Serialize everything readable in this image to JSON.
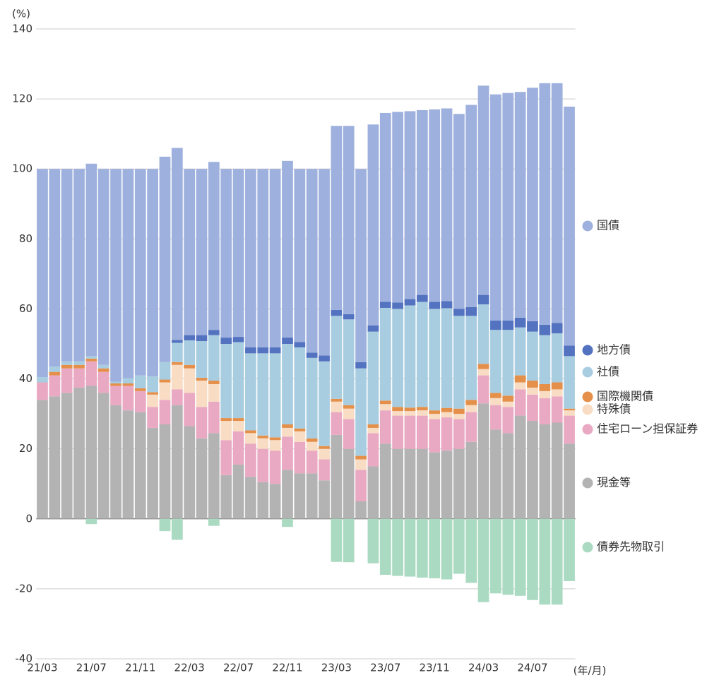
{
  "chart_data": {
    "type": "stacked-bar",
    "y_unit_label": "(%)",
    "x_unit_label": "(年/月)",
    "categories": [
      "21/03",
      null,
      null,
      null,
      "21/07",
      null,
      null,
      null,
      "21/11",
      null,
      null,
      null,
      "22/03",
      null,
      null,
      null,
      "22/07",
      null,
      null,
      null,
      "22/11",
      null,
      null,
      null,
      "23/03",
      null,
      null,
      null,
      "23/07",
      null,
      null,
      null,
      "23/11",
      null,
      null,
      null,
      "24/03",
      null,
      null,
      null,
      "24/07",
      null,
      null,
      null
    ],
    "ylim": [
      -40,
      140
    ],
    "yticks": [
      -40,
      -20,
      0,
      20,
      40,
      60,
      80,
      100,
      120,
      140
    ],
    "grid": true,
    "series": [
      {
        "name": "現金等",
        "color": "#b3b3b3",
        "values": [
          34,
          35,
          36,
          37.5,
          38,
          36,
          32.5,
          31,
          30.5,
          26,
          27,
          32.5,
          26.5,
          23,
          24.5,
          12.5,
          15.5,
          12,
          10.5,
          10,
          14,
          13,
          13,
          11,
          24,
          20,
          5,
          15,
          21.5,
          20,
          20,
          20,
          19,
          19.5,
          20,
          22,
          33,
          25.5,
          24.5,
          29.5,
          28,
          27,
          27.5,
          21.5
        ]
      },
      {
        "name": "住宅ローン担保証券",
        "color": "#eaa9c2",
        "values": [
          5,
          6,
          7,
          5.5,
          7,
          6,
          5.5,
          7,
          6,
          6,
          7,
          4.5,
          9.5,
          9,
          9,
          10,
          9.5,
          9.5,
          9.5,
          9.5,
          9.5,
          9,
          6.5,
          6,
          6.5,
          8.5,
          9,
          9.5,
          9.5,
          9.5,
          9.5,
          9.5,
          9.5,
          9.5,
          8.5,
          8.5,
          8,
          7,
          7.5,
          7.5,
          7.5,
          7.5,
          7.5,
          8
        ]
      },
      {
        "name": "特殊債",
        "color": "#f8dcc4",
        "values": [
          0,
          0,
          0,
          0,
          0,
          0,
          0,
          0,
          0,
          3.5,
          5,
          7,
          7,
          7.5,
          5,
          5.5,
          3,
          3,
          3,
          3,
          2.5,
          3,
          2.5,
          3,
          3,
          3,
          3,
          1.5,
          1.8,
          1.3,
          1.3,
          1.5,
          1.5,
          1.5,
          1.5,
          2,
          1.8,
          2,
          1.5,
          2,
          2,
          2,
          2,
          1.5
        ]
      },
      {
        "name": "国際機関債",
        "color": "#e5904a",
        "values": [
          0,
          1,
          1,
          1,
          0.8,
          1,
          0.7,
          0.7,
          0.8,
          0.7,
          0.8,
          0.8,
          1,
          0.8,
          1,
          0.8,
          0.8,
          0.8,
          0.8,
          0.8,
          1,
          0.8,
          1,
          0.8,
          0.8,
          1,
          1,
          1,
          1,
          1.2,
          1,
          1,
          1,
          1.2,
          1.5,
          1.5,
          1.5,
          1.5,
          1.7,
          2,
          2,
          2,
          2,
          0.5
        ]
      },
      {
        "name": "社債",
        "color": "#a9cde0",
        "values": [
          1.5,
          1.5,
          1,
          1,
          0.7,
          1,
          0.5,
          1.5,
          3.7,
          4.5,
          5,
          5.5,
          7,
          10.5,
          13,
          21.2,
          21.7,
          22,
          23.5,
          24,
          23,
          23.2,
          23,
          24.2,
          23.7,
          24.5,
          25,
          26.5,
          26.5,
          28,
          29.2,
          30,
          29,
          28.5,
          26.5,
          24,
          17,
          18,
          18.8,
          13.7,
          14,
          14,
          14,
          15
        ]
      },
      {
        "name": "地方債",
        "color": "#5373c0",
        "values": [
          0,
          0,
          0,
          0,
          0,
          0,
          0,
          0,
          0,
          0,
          0,
          0.8,
          1.5,
          1.7,
          1.5,
          1.8,
          1.5,
          1.7,
          1.7,
          1.7,
          1.8,
          1.5,
          1.5,
          1.7,
          1.7,
          1.5,
          1.8,
          1.8,
          1.7,
          1.8,
          1.8,
          2,
          2,
          2,
          2,
          2.5,
          2.7,
          2.7,
          2.7,
          2.8,
          3,
          3,
          3,
          3
        ]
      },
      {
        "name": "国債",
        "color": "#9eb0dd",
        "values": [
          59.5,
          56.5,
          55,
          55,
          55,
          56,
          60.8,
          59.8,
          59,
          59.3,
          58.7,
          54.9,
          47.5,
          47.5,
          48,
          48.2,
          48,
          51,
          51,
          51,
          50.5,
          49.5,
          52.5,
          53.3,
          52.6,
          53.8,
          55.2,
          57.4,
          54,
          54.5,
          53.7,
          52.8,
          55,
          55.1,
          55.7,
          57.8,
          59.8,
          64.6,
          65,
          64.5,
          66.7,
          69,
          68.5,
          68.3
        ]
      },
      {
        "name": "債券先物取引",
        "color": "#abdac2",
        "values": [
          0,
          0,
          0,
          0,
          -1.5,
          0,
          0,
          0,
          0,
          0,
          -3.5,
          -6,
          0,
          0,
          -2,
          0,
          0,
          0,
          0,
          0,
          -2.3,
          0,
          0,
          0,
          -12.3,
          -12.4,
          0,
          -12.7,
          -16,
          -16.3,
          -16.5,
          -16.8,
          -17,
          -17.3,
          -15.7,
          -18.3,
          -23.8,
          -21.3,
          -21.7,
          -22,
          -23.2,
          -24.5,
          -24.5,
          -17.8
        ]
      }
    ]
  }
}
